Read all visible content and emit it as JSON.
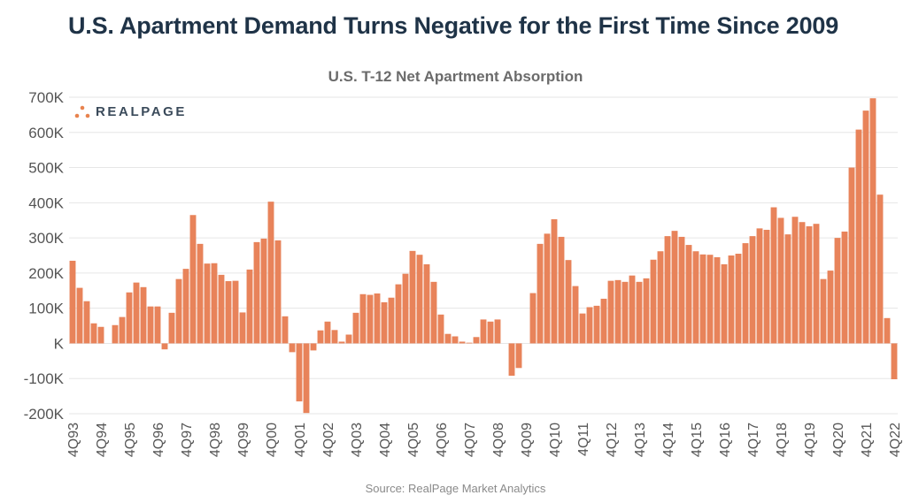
{
  "header": {
    "title": "U.S. Apartment Demand Turns Negative for the First Time Since 2009"
  },
  "logo": {
    "text": "REALPAGE",
    "accent": "#e8834e"
  },
  "footer": {
    "source": "Source: RealPage Market Analytics"
  },
  "chart_data": {
    "type": "bar",
    "title": "U.S. T-12 Net Apartment Absorption",
    "xlabel": "",
    "ylabel": "",
    "ylim": [
      -200000,
      700000
    ],
    "yticks": [
      700000,
      600000,
      500000,
      400000,
      300000,
      200000,
      100000,
      0,
      -100000,
      -200000
    ],
    "ytick_labels": [
      "700K",
      "600K",
      "500K",
      "400K",
      "300K",
      "200K",
      "100K",
      "K",
      "-100K",
      "-200K"
    ],
    "grid": true,
    "bar_color": "#e8835a",
    "start_quarter": "4Q93",
    "x_tick_labels": [
      "4Q93",
      "4Q94",
      "4Q95",
      "4Q96",
      "4Q97",
      "4Q98",
      "4Q99",
      "4Q00",
      "4Q01",
      "4Q02",
      "4Q03",
      "4Q04",
      "4Q05",
      "4Q06",
      "4Q07",
      "4Q08",
      "4Q09",
      "4Q10",
      "4Q11",
      "4Q12",
      "4Q13",
      "4Q14",
      "4Q15",
      "4Q16",
      "4Q17",
      "4Q18",
      "4Q19",
      "4Q20",
      "4Q21",
      "4Q22"
    ],
    "values": [
      235000,
      158000,
      120000,
      57000,
      47000,
      0,
      52000,
      75000,
      145000,
      173000,
      160000,
      105000,
      105000,
      -17000,
      87000,
      183000,
      212000,
      365000,
      283000,
      227000,
      228000,
      195000,
      177000,
      178000,
      88000,
      210000,
      288000,
      298000,
      403000,
      293000,
      77000,
      -25000,
      -165000,
      -198000,
      -20000,
      37000,
      62000,
      38000,
      5000,
      25000,
      87000,
      140000,
      138000,
      142000,
      117000,
      130000,
      168000,
      198000,
      263000,
      252000,
      225000,
      175000,
      82000,
      27000,
      20000,
      5000,
      2000,
      18000,
      68000,
      62000,
      68000,
      0,
      -92000,
      -70000,
      0,
      143000,
      283000,
      312000,
      353000,
      303000,
      237000,
      163000,
      85000,
      103000,
      107000,
      127000,
      178000,
      180000,
      175000,
      193000,
      175000,
      185000,
      238000,
      262000,
      305000,
      320000,
      303000,
      280000,
      262000,
      253000,
      252000,
      245000,
      225000,
      250000,
      255000,
      285000,
      305000,
      327000,
      323000,
      387000,
      357000,
      310000,
      360000,
      345000,
      333000,
      340000,
      183000,
      207000,
      300000,
      318000,
      500000,
      608000,
      662000,
      697000,
      423000,
      72000,
      -102000
    ]
  }
}
